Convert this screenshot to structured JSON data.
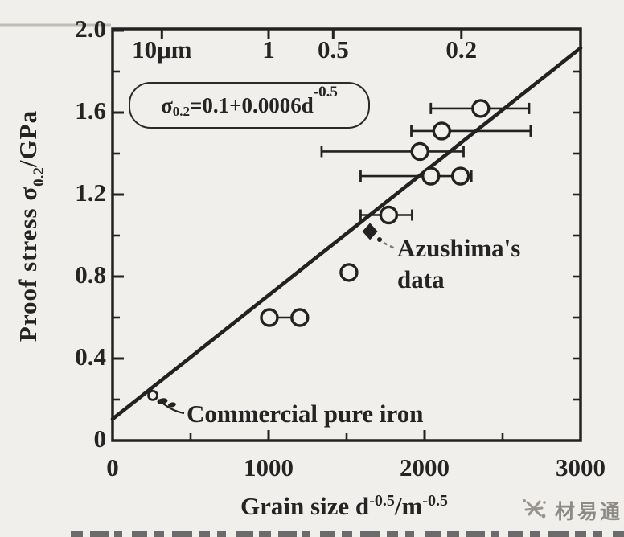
{
  "figure": {
    "bg_color": "#f1efec",
    "ink_color": "#222222",
    "watermark": {
      "logo_icon": "starburst-icon",
      "text": "材易通",
      "color": "#8e8b87"
    }
  },
  "chart_data": {
    "type": "scatter",
    "title": "",
    "xlabel": {
      "base": "Grain size d",
      "sup1": "-0.5",
      "mid": "/m",
      "sup2": "-0.5"
    },
    "ylabel": {
      "base": "Proof stress σ",
      "sub": "0.2",
      "suffix": "/GPa"
    },
    "xlim": [
      0,
      3000
    ],
    "ylim": [
      0,
      2.0
    ],
    "grid": false,
    "x_major_ticks": [
      0,
      1000,
      2000,
      3000
    ],
    "x_major_labels": [
      "0",
      "1000",
      "2000",
      "3000"
    ],
    "x_minor_ticks": [
      500,
      1500,
      2500
    ],
    "y_major_ticks": [
      0,
      0.4,
      0.8,
      1.2,
      1.6,
      2.0
    ],
    "y_major_labels": [
      "0",
      "0.4",
      "0.8",
      "1.2",
      "1.6",
      "2.0"
    ],
    "y_minor_ticks": [
      0.2,
      0.6,
      1.0,
      1.4,
      1.8
    ],
    "right_border_ticks": [
      0.2,
      0.4,
      0.6,
      0.8,
      1.0,
      1.2,
      1.4,
      1.6,
      1.8
    ],
    "top_axis": {
      "meaning": "grain size scale",
      "ticks": [
        {
          "label": "10μm",
          "x": 316
        },
        {
          "label": "1",
          "x": 1000
        },
        {
          "label": "0.5",
          "x": 1414
        },
        {
          "label": "0.2",
          "x": 2236
        }
      ]
    },
    "fit_line": {
      "equation": {
        "sigma": "σ",
        "sigma_sub": "0.2",
        "body": "=0.1+0.0006d",
        "sup": "-0.5"
      },
      "x_start": 0,
      "y_start": 0.105,
      "x_end": 3000,
      "y_end": 1.915
    },
    "series": [
      {
        "name": "ultrafine-grained steel data (open circles)",
        "marker": "open-circle",
        "points": [
          {
            "x": 2360,
            "y": 1.62,
            "xerr": [
              2040,
              2670
            ],
            "caps": true
          },
          {
            "x": 2110,
            "y": 1.51,
            "xerr": [
              1915,
              2680
            ],
            "caps": true
          },
          {
            "x": 1970,
            "y": 1.41,
            "xerr": [
              1340,
              2250
            ],
            "caps": true
          },
          {
            "x": 2040,
            "y": 1.29,
            "xerr": [
              1590,
              2300
            ],
            "caps": true
          },
          {
            "x": 2230,
            "y": 1.29
          },
          {
            "x": 1770,
            "y": 1.1,
            "xerr": [
              1590,
              1920
            ],
            "caps": true
          },
          {
            "x": 1515,
            "y": 0.82
          },
          {
            "x": 1005,
            "y": 0.6,
            "xerr": [
              1005,
              1200
            ],
            "caps": false
          },
          {
            "x": 1200,
            "y": 0.6
          },
          {
            "x": 258,
            "y": 0.22,
            "small": true
          }
        ]
      },
      {
        "name": "Azushima's data (filled diamond)",
        "marker": "filled-diamond",
        "points": [
          {
            "x": 1650,
            "y": 1.02
          }
        ]
      }
    ],
    "annotations": [
      {
        "id": "azushima",
        "lines": [
          "Azushima's",
          "data"
        ],
        "points_to": {
          "x": 1650,
          "y": 1.02
        }
      },
      {
        "id": "commercial",
        "lines": [
          "Commercial pure iron"
        ],
        "points_to": {
          "x": 258,
          "y": 0.2
        }
      }
    ]
  }
}
